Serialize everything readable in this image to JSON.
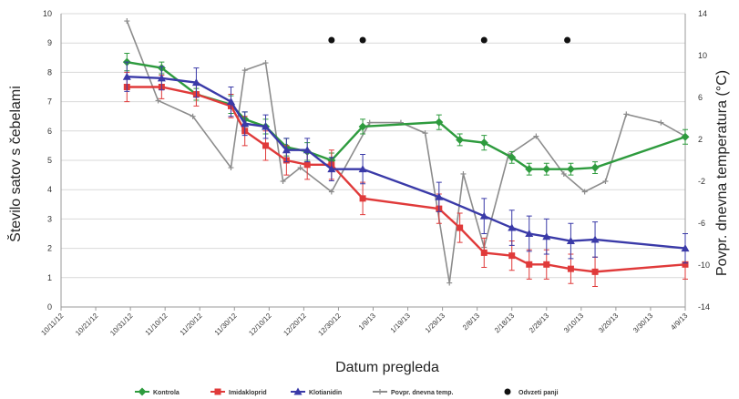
{
  "chart_data": {
    "type": "line",
    "xlabel": "Datum pregleda",
    "ylabel_left": "Število satov s čebelami",
    "ylabel_right": "Povpr. dnevna temperatura (°C)",
    "x_tick_labels": [
      "10/11/12",
      "10/21/12",
      "10/31/12",
      "11/10/12",
      "11/20/12",
      "11/30/12",
      "12/10/12",
      "12/20/12",
      "12/30/12",
      "1/9/13",
      "1/19/13",
      "1/29/13",
      "2/8/13",
      "2/18/13",
      "2/28/13",
      "3/10/13",
      "3/20/13",
      "3/30/13",
      "4/9/13"
    ],
    "ylim_left": [
      0,
      10
    ],
    "yticks_left": [
      0,
      1,
      2,
      3,
      4,
      5,
      6,
      7,
      8,
      9,
      10
    ],
    "ylim_right": [
      -14,
      14
    ],
    "yticks_right": [
      -14,
      -10,
      -6,
      -2,
      2,
      6,
      10,
      14
    ],
    "legend_position": "bottom",
    "grid": "horizontal",
    "series": [
      {
        "name": "Kontrola",
        "axis": "left",
        "color": "#2e9b3e",
        "marker": "diamond",
        "x": [
          "10/30/12",
          "11/9/12",
          "11/19/12",
          "11/29/12",
          "12/3/12",
          "12/9/12",
          "12/15/12",
          "12/21/12",
          "12/28/12",
          "1/6/13",
          "1/28/13",
          "2/3/13",
          "2/10/13",
          "2/18/13",
          "2/23/13",
          "2/28/13",
          "3/7/13",
          "3/14/13",
          "4/9/13"
        ],
        "values": [
          8.35,
          8.15,
          7.25,
          6.9,
          6.4,
          6.15,
          5.45,
          5.3,
          5.0,
          6.15,
          6.3,
          5.7,
          5.6,
          5.1,
          4.7,
          4.7,
          4.7,
          4.75,
          5.8
        ],
        "errors": [
          0.3,
          0.2,
          0.2,
          0.3,
          0.25,
          0.25,
          0.3,
          0.3,
          0.25,
          0.25,
          0.25,
          0.2,
          0.25,
          0.2,
          0.2,
          0.2,
          0.2,
          0.2,
          0.25
        ]
      },
      {
        "name": "Imidakloprid",
        "axis": "left",
        "color": "#e03a3a",
        "marker": "square",
        "x": [
          "10/30/12",
          "11/9/12",
          "11/19/12",
          "11/29/12",
          "12/3/12",
          "12/9/12",
          "12/15/12",
          "12/21/12",
          "12/28/12",
          "1/6/13",
          "1/28/13",
          "2/3/13",
          "2/10/13",
          "2/18/13",
          "2/23/13",
          "2/28/13",
          "3/7/13",
          "3/14/13",
          "4/9/13"
        ],
        "values": [
          7.5,
          7.5,
          7.25,
          6.85,
          6.0,
          5.5,
          5.0,
          4.85,
          4.85,
          3.7,
          3.35,
          2.7,
          1.85,
          1.75,
          1.45,
          1.45,
          1.3,
          1.2,
          1.45
        ],
        "errors": [
          0.5,
          0.4,
          0.4,
          0.4,
          0.5,
          0.5,
          0.5,
          0.5,
          0.5,
          0.55,
          0.5,
          0.5,
          0.5,
          0.5,
          0.5,
          0.5,
          0.5,
          0.5,
          0.5
        ]
      },
      {
        "name": "Klotianidin",
        "axis": "left",
        "color": "#3a3aa8",
        "marker": "triangle",
        "x": [
          "10/30/12",
          "11/9/12",
          "11/19/12",
          "11/29/12",
          "12/3/12",
          "12/9/12",
          "12/15/12",
          "12/21/12",
          "12/28/12",
          "1/6/13",
          "1/28/13",
          "2/10/13",
          "2/18/13",
          "2/23/13",
          "2/28/13",
          "3/7/13",
          "3/14/13",
          "4/9/13"
        ],
        "values": [
          7.85,
          7.8,
          7.65,
          7.0,
          6.25,
          6.15,
          5.35,
          5.35,
          4.7,
          4.7,
          3.75,
          3.1,
          2.7,
          2.5,
          2.4,
          2.25,
          2.3,
          2.0
        ],
        "errors": [
          0.5,
          0.4,
          0.5,
          0.5,
          0.4,
          0.4,
          0.4,
          0.4,
          0.4,
          0.5,
          0.5,
          0.6,
          0.6,
          0.6,
          0.6,
          0.6,
          0.6,
          0.5
        ]
      },
      {
        "name": "Povpr. dnevna temp.",
        "axis": "right",
        "color": "#8c8c8c",
        "marker": "plus",
        "x": [
          "10/30/12",
          "11/8/12",
          "11/18/12",
          "11/29/12",
          "12/3/12",
          "12/9/12",
          "12/14/12",
          "12/19/12",
          "12/28/12",
          "1/8/13",
          "1/17/13",
          "1/24/13",
          "1/31/13",
          "2/4/13",
          "2/10/13",
          "2/17/13",
          "2/25/13",
          "3/5/13",
          "3/11/13",
          "3/17/13",
          "3/23/13",
          "4/2/13",
          "4/9/13"
        ],
        "values": [
          13.3,
          5.7,
          4.2,
          -0.7,
          8.6,
          9.3,
          -2.0,
          -0.7,
          -3.0,
          3.6,
          3.6,
          2.6,
          -11.7,
          -1.3,
          -8.3,
          0.5,
          2.3,
          -1.3,
          -3.0,
          -2.0,
          4.4,
          3.6,
          2.3
        ]
      },
      {
        "name": "Odvzeti panji",
        "axis": "left",
        "color": "#111111",
        "marker": "dot",
        "x": [
          "12/28/12",
          "1/6/13",
          "2/10/13",
          "3/6/13"
        ],
        "values": [
          9.1,
          9.1,
          9.1,
          9.1
        ]
      }
    ]
  }
}
